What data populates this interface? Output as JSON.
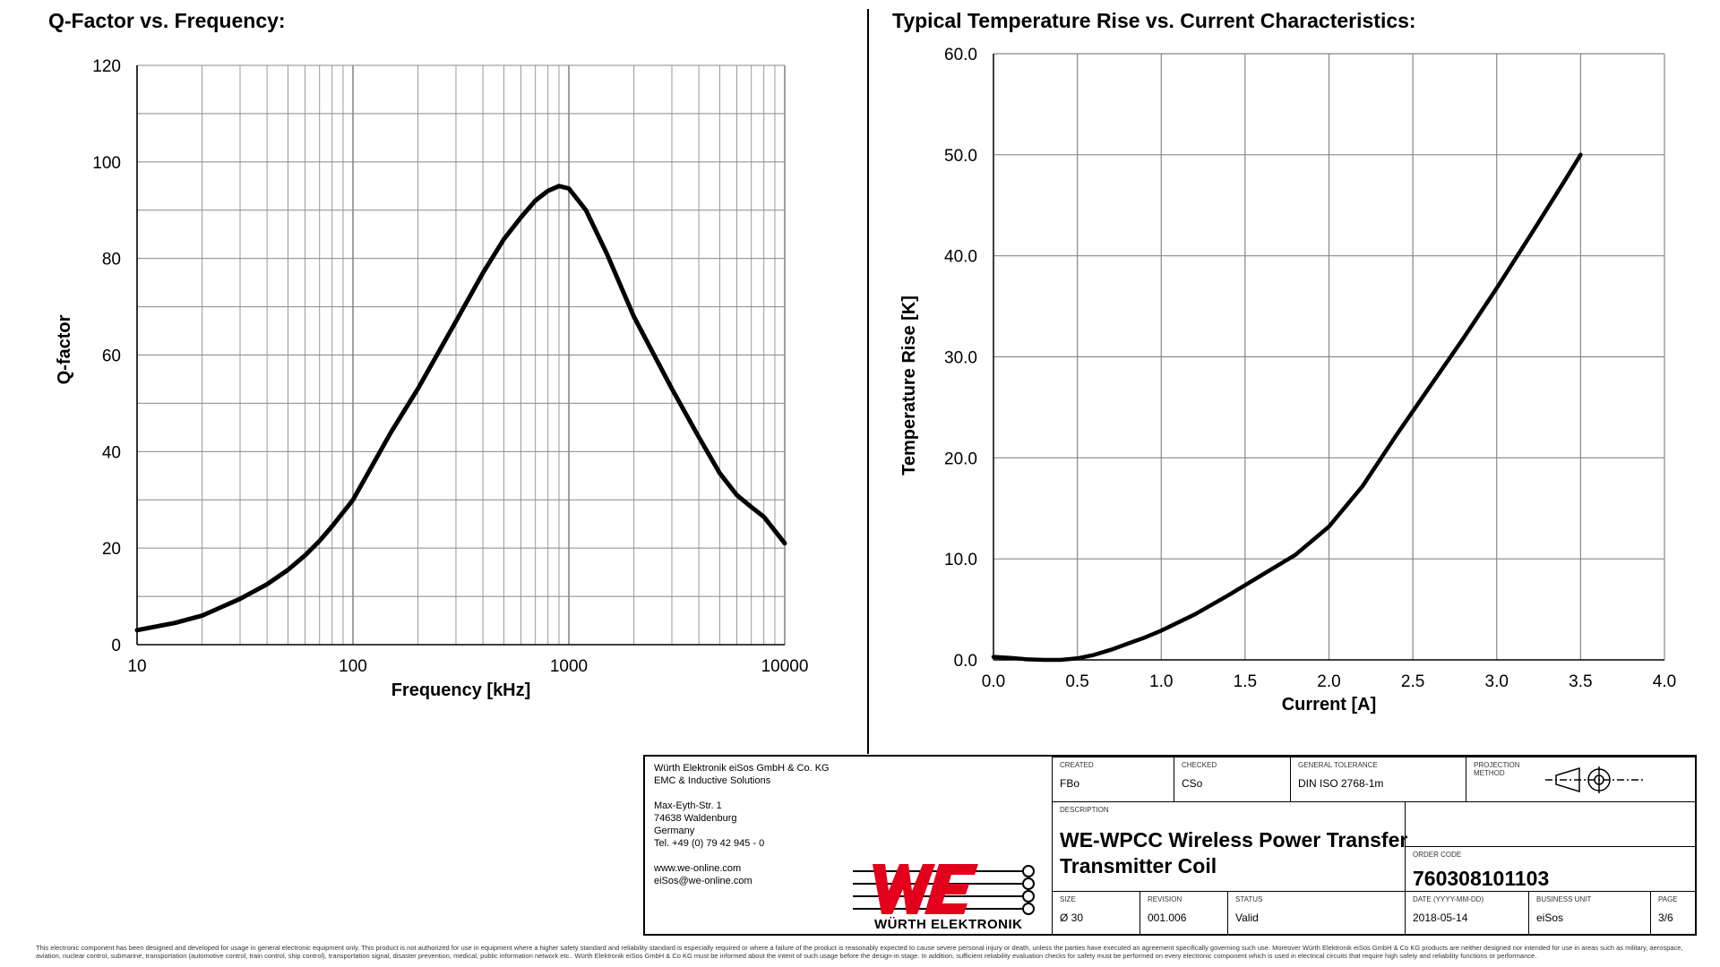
{
  "chart_data": [
    {
      "type": "line",
      "title": "Q-Factor vs. Frequency:",
      "xlabel": "Frequency [kHz]",
      "ylabel": "Q-factor",
      "xscale": "log",
      "xlim": [
        10,
        10000
      ],
      "ylim": [
        0,
        120
      ],
      "xticks": [
        "10",
        "100",
        "1000",
        "10000"
      ],
      "yticks": [
        "0",
        "20",
        "40",
        "60",
        "80",
        "100",
        "120"
      ],
      "grid": true,
      "series": [
        {
          "x": [
            10,
            15,
            20,
            30,
            40,
            50,
            60,
            70,
            80,
            100,
            150,
            200,
            300,
            400,
            500,
            600,
            700,
            800,
            900,
            1000,
            1200,
            1500,
            2000,
            3000,
            4000,
            5000,
            6000,
            7000,
            8000,
            10000
          ],
          "y": [
            3,
            4.5,
            6,
            9.5,
            12.5,
            15.5,
            18.5,
            21.5,
            24.5,
            30,
            44,
            53,
            67,
            77,
            84,
            88.5,
            92,
            94,
            95,
            94.5,
            90,
            81,
            68,
            53,
            43,
            35.5,
            31,
            28.5,
            26.5,
            21
          ]
        }
      ]
    },
    {
      "type": "line",
      "title": "Typical Temperature Rise vs. Current Characteristics:",
      "xlabel": "Current [A]",
      "ylabel": "Temperature Rise [K]",
      "xlim": [
        0,
        4
      ],
      "ylim": [
        0,
        60
      ],
      "xticks": [
        "0.0",
        "0.5",
        "1.0",
        "1.5",
        "2.0",
        "2.5",
        "3.0",
        "3.5",
        "4.0"
      ],
      "yticks": [
        "0.0",
        "10.0",
        "20.0",
        "30.0",
        "40.0",
        "50.0",
        "60.0"
      ],
      "grid": true,
      "series": [
        {
          "x": [
            0,
            0.1,
            0.2,
            0.3,
            0.4,
            0.5,
            0.6,
            0.7,
            0.8,
            0.9,
            1.0,
            1.2,
            1.4,
            1.6,
            1.8,
            2.0,
            2.2,
            2.4,
            2.6,
            2.8,
            3.0,
            3.2,
            3.4,
            3.5
          ],
          "y": [
            0.3,
            0.2,
            0.05,
            0,
            0,
            0.15,
            0.5,
            1.0,
            1.6,
            2.2,
            2.9,
            4.5,
            6.4,
            8.4,
            10.4,
            13.2,
            17.2,
            22.2,
            27.0,
            31.8,
            36.8,
            42.0,
            47.3,
            50.0
          ]
        }
      ]
    }
  ],
  "title_block": {
    "company_lines": [
      "Würth Elektronik eiSos GmbH & Co. KG",
      "EMC & Inductive Solutions",
      "",
      "Max-Eyth-Str. 1",
      "74638 Waldenburg",
      "Germany",
      "Tel. +49 (0) 79 42 945 - 0",
      "",
      "www.we-online.com",
      "eiSos@we-online.com"
    ],
    "logo_text": "WÜRTH ELEKTRONIK",
    "created_label": "CREATED",
    "created_value": "FBo",
    "checked_label": "CHECKED",
    "checked_value": "CSo",
    "tolerance_label": "GENERAL TOLERANCE",
    "tolerance_value": "DIN ISO 2768-1m",
    "projection_label": "PROJECTION METHOD",
    "description_label": "DESCRIPTION",
    "description_value": "WE-WPCC Wireless Power Transfer Transmitter Coil",
    "order_label": "ORDER CODE",
    "order_value": "760308101103",
    "size_label": "SIZE",
    "size_value": "Ø 30",
    "revision_label": "REVISION",
    "revision_value": "001.006",
    "status_label": "STATUS",
    "status_value": "Valid",
    "date_label": "DATE (YYYY-MM-DD)",
    "date_value": "2018-05-14",
    "unit_label": "BUSINESS UNIT",
    "unit_value": "eiSos",
    "page_label": "PAGE",
    "page_value": "3/6"
  },
  "disclaimer": "This electronic component has been designed and developed for usage in general electronic equipment only. This product is not authorized for use in equipment where a higher safety standard and reliability standard is especially required or where a failure of the product is reasonably expected to cause severe personal injury or death, unless the parties have executed an agreement specifically governing such use. Moreover Würth Elektronik eiSos GmbH & Co KG products are neither designed nor intended for use in areas such as military, aerospace, aviation, nuclear control, submarine, transportation (automotive control, train control, ship control), transportation signal, disaster prevention, medical, public information network etc.. Würth Elektronik eiSos GmbH & Co KG must be informed about the intent of such usage before the design-in stage. In addition, sufficient reliability evaluation checks for safety must be performed on every electronic component which is used in electrical circuits that require high safety and reliability functions or performance."
}
